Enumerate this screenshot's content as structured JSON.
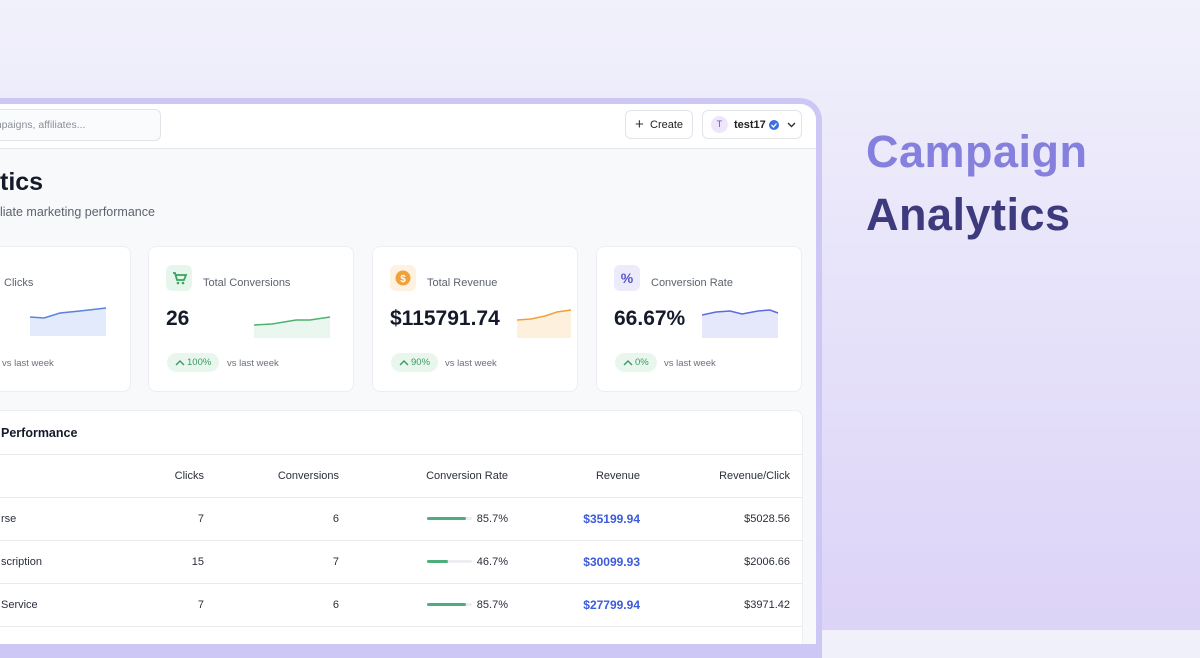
{
  "header": {
    "search_placeholder": "ampaigns, affiliates...",
    "create": "Create",
    "avatar": "T",
    "user": "test17"
  },
  "page": {
    "title": "tics",
    "subtitle": "liate marketing performance"
  },
  "cards": [
    {
      "label": "Clicks",
      "vs": "vs last week"
    },
    {
      "label": "Total Conversions",
      "value": "26",
      "change": "100%",
      "vs": "vs last week"
    },
    {
      "label": "Total Revenue",
      "value": "$115791.74",
      "change": "90%",
      "vs": "vs last week"
    },
    {
      "label": "Conversion Rate",
      "value": "66.67%",
      "change": "0%",
      "vs": "vs last week"
    }
  ],
  "table": {
    "title": "Performance",
    "columns": [
      "Clicks",
      "Conversions",
      "Conversion Rate",
      "Revenue",
      "Revenue/Click"
    ],
    "rows": [
      [
        "rse",
        7,
        6,
        "85.7%",
        "$35199.94",
        "$5028.56"
      ],
      [
        "scription",
        15,
        7,
        "46.7%",
        "$30099.93",
        "$2006.66"
      ],
      [
        "Service",
        7,
        6,
        "85.7%",
        "$27799.94",
        "$3971.42"
      ]
    ]
  },
  "headline": [
    "Campaign",
    "Analytics"
  ]
}
